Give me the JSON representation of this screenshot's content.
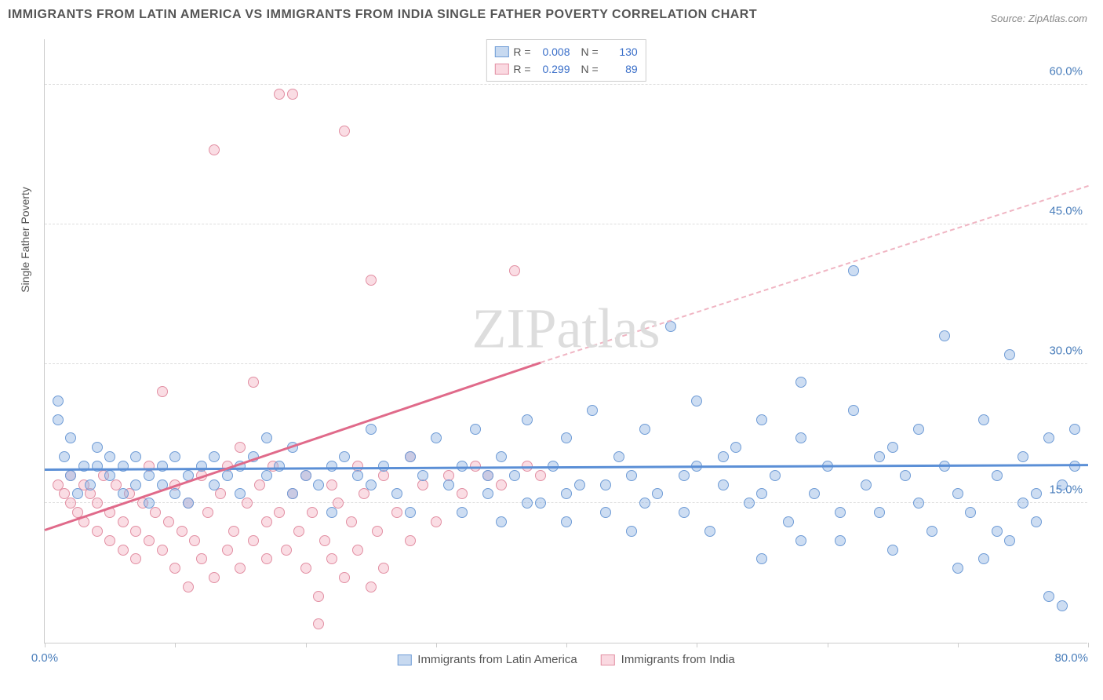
{
  "title": "IMMIGRANTS FROM LATIN AMERICA VS IMMIGRANTS FROM INDIA SINGLE FATHER POVERTY CORRELATION CHART",
  "source": "Source: ZipAtlas.com",
  "watermark": "ZIPatlas",
  "y_axis_title": "Single Father Poverty",
  "chart": {
    "type": "scatter",
    "xlim": [
      0,
      80
    ],
    "ylim": [
      0,
      65
    ],
    "y_ticks": [
      15,
      30,
      45,
      60
    ],
    "y_tick_labels": [
      "15.0%",
      "30.0%",
      "45.0%",
      "60.0%"
    ],
    "x_ticks": [
      0,
      10,
      20,
      30,
      40,
      50,
      60,
      70,
      80
    ],
    "x_label_min": "0.0%",
    "x_label_max": "80.0%",
    "grid_color": "#dddddd",
    "background_color": "#ffffff",
    "marker_radius": 7,
    "series": {
      "latin_america": {
        "color_fill": "rgba(144,180,226,0.45)",
        "color_stroke": "#6f9cd6",
        "trend_color": "#5b8fd6",
        "trend": {
          "x1": 0,
          "y1": 18.5,
          "x2": 80,
          "y2": 19.0
        },
        "R": "0.008",
        "N": "130",
        "label": "Immigrants from Latin America",
        "points": [
          [
            1,
            26
          ],
          [
            1,
            24
          ],
          [
            2,
            22
          ],
          [
            1.5,
            20
          ],
          [
            2,
            18
          ],
          [
            3,
            19
          ],
          [
            2.5,
            16
          ],
          [
            3.5,
            17
          ],
          [
            4,
            19
          ],
          [
            4,
            21
          ],
          [
            5,
            18
          ],
          [
            5,
            20
          ],
          [
            6,
            16
          ],
          [
            6,
            19
          ],
          [
            7,
            17
          ],
          [
            7,
            20
          ],
          [
            8,
            18
          ],
          [
            8,
            15
          ],
          [
            9,
            19
          ],
          [
            9,
            17
          ],
          [
            10,
            16
          ],
          [
            10,
            20
          ],
          [
            11,
            18
          ],
          [
            11,
            15
          ],
          [
            12,
            19
          ],
          [
            13,
            17
          ],
          [
            13,
            20
          ],
          [
            14,
            18
          ],
          [
            15,
            16
          ],
          [
            15,
            19
          ],
          [
            16,
            20
          ],
          [
            17,
            18
          ],
          [
            17,
            22
          ],
          [
            18,
            19
          ],
          [
            19,
            16
          ],
          [
            19,
            21
          ],
          [
            20,
            18
          ],
          [
            21,
            17
          ],
          [
            22,
            19
          ],
          [
            22,
            14
          ],
          [
            23,
            20
          ],
          [
            24,
            18
          ],
          [
            25,
            17
          ],
          [
            25,
            23
          ],
          [
            26,
            19
          ],
          [
            27,
            16
          ],
          [
            28,
            20
          ],
          [
            28,
            14
          ],
          [
            29,
            18
          ],
          [
            30,
            22
          ],
          [
            31,
            17
          ],
          [
            32,
            14
          ],
          [
            32,
            19
          ],
          [
            33,
            23
          ],
          [
            34,
            16
          ],
          [
            35,
            20
          ],
          [
            35,
            13
          ],
          [
            36,
            18
          ],
          [
            37,
            24
          ],
          [
            38,
            15
          ],
          [
            39,
            19
          ],
          [
            40,
            22
          ],
          [
            40,
            13
          ],
          [
            41,
            17
          ],
          [
            42,
            25
          ],
          [
            43,
            14
          ],
          [
            44,
            20
          ],
          [
            45,
            18
          ],
          [
            45,
            12
          ],
          [
            46,
            23
          ],
          [
            47,
            16
          ],
          [
            48,
            34
          ],
          [
            49,
            14
          ],
          [
            50,
            19
          ],
          [
            50,
            26
          ],
          [
            51,
            12
          ],
          [
            52,
            17
          ],
          [
            53,
            21
          ],
          [
            54,
            15
          ],
          [
            55,
            24
          ],
          [
            55,
            9
          ],
          [
            56,
            18
          ],
          [
            57,
            13
          ],
          [
            58,
            22
          ],
          [
            58,
            28
          ],
          [
            59,
            16
          ],
          [
            60,
            19
          ],
          [
            61,
            11
          ],
          [
            62,
            25
          ],
          [
            62,
            40
          ],
          [
            63,
            17
          ],
          [
            64,
            14
          ],
          [
            65,
            21
          ],
          [
            65,
            10
          ],
          [
            66,
            18
          ],
          [
            67,
            23
          ],
          [
            68,
            12
          ],
          [
            69,
            19
          ],
          [
            69,
            33
          ],
          [
            70,
            16
          ],
          [
            71,
            14
          ],
          [
            72,
            24
          ],
          [
            72,
            9
          ],
          [
            73,
            18
          ],
          [
            74,
            11
          ],
          [
            74,
            31
          ],
          [
            75,
            20
          ],
          [
            75,
            15
          ],
          [
            76,
            13
          ],
          [
            77,
            22
          ],
          [
            77,
            5
          ],
          [
            78,
            17
          ],
          [
            78,
            4
          ],
          [
            79,
            19
          ],
          [
            79,
            23
          ],
          [
            76,
            16
          ],
          [
            73,
            12
          ],
          [
            70,
            8
          ],
          [
            67,
            15
          ],
          [
            64,
            20
          ],
          [
            61,
            14
          ],
          [
            58,
            11
          ],
          [
            55,
            16
          ],
          [
            52,
            20
          ],
          [
            49,
            18
          ],
          [
            46,
            15
          ],
          [
            43,
            17
          ],
          [
            40,
            16
          ],
          [
            37,
            15
          ],
          [
            34,
            18
          ]
        ]
      },
      "india": {
        "color_fill": "rgba(245,180,195,0.45)",
        "color_stroke": "#e28fa3",
        "trend_color": "#e06a8a",
        "trend_solid": {
          "x1": 0,
          "y1": 12,
          "x2": 38,
          "y2": 30
        },
        "trend_dashed": {
          "x1": 38,
          "y1": 30,
          "x2": 80,
          "y2": 49
        },
        "R": "0.299",
        "N": "89",
        "label": "Immigrants from India",
        "points": [
          [
            1,
            17
          ],
          [
            1.5,
            16
          ],
          [
            2,
            18
          ],
          [
            2,
            15
          ],
          [
            2.5,
            14
          ],
          [
            3,
            17
          ],
          [
            3,
            13
          ],
          [
            3.5,
            16
          ],
          [
            4,
            12
          ],
          [
            4,
            15
          ],
          [
            4.5,
            18
          ],
          [
            5,
            14
          ],
          [
            5,
            11
          ],
          [
            5.5,
            17
          ],
          [
            6,
            13
          ],
          [
            6,
            10
          ],
          [
            6.5,
            16
          ],
          [
            7,
            12
          ],
          [
            7,
            9
          ],
          [
            7.5,
            15
          ],
          [
            8,
            11
          ],
          [
            8,
            19
          ],
          [
            8.5,
            14
          ],
          [
            9,
            10
          ],
          [
            9,
            27
          ],
          [
            9.5,
            13
          ],
          [
            10,
            8
          ],
          [
            10,
            17
          ],
          [
            10.5,
            12
          ],
          [
            11,
            15
          ],
          [
            11,
            6
          ],
          [
            11.5,
            11
          ],
          [
            12,
            18
          ],
          [
            12,
            9
          ],
          [
            12.5,
            14
          ],
          [
            13,
            7
          ],
          [
            13,
            53
          ],
          [
            13.5,
            16
          ],
          [
            14,
            10
          ],
          [
            14,
            19
          ],
          [
            14.5,
            12
          ],
          [
            15,
            8
          ],
          [
            15,
            21
          ],
          [
            15.5,
            15
          ],
          [
            16,
            11
          ],
          [
            16,
            28
          ],
          [
            16.5,
            17
          ],
          [
            17,
            9
          ],
          [
            17,
            13
          ],
          [
            17.5,
            19
          ],
          [
            18,
            59
          ],
          [
            18,
            14
          ],
          [
            18.5,
            10
          ],
          [
            19,
            16
          ],
          [
            19,
            59
          ],
          [
            19.5,
            12
          ],
          [
            20,
            8
          ],
          [
            20,
            18
          ],
          [
            20.5,
            14
          ],
          [
            21,
            5
          ],
          [
            21,
            2
          ],
          [
            21.5,
            11
          ],
          [
            22,
            17
          ],
          [
            22,
            9
          ],
          [
            22.5,
            15
          ],
          [
            23,
            7
          ],
          [
            23,
            55
          ],
          [
            23.5,
            13
          ],
          [
            24,
            19
          ],
          [
            24,
            10
          ],
          [
            24.5,
            16
          ],
          [
            25,
            6
          ],
          [
            25,
            39
          ],
          [
            25.5,
            12
          ],
          [
            26,
            18
          ],
          [
            26,
            8
          ],
          [
            27,
            14
          ],
          [
            28,
            11
          ],
          [
            28,
            20
          ],
          [
            29,
            17
          ],
          [
            30,
            13
          ],
          [
            31,
            18
          ],
          [
            32,
            16
          ],
          [
            33,
            19
          ],
          [
            34,
            18
          ],
          [
            35,
            17
          ],
          [
            36,
            40
          ],
          [
            37,
            19
          ],
          [
            38,
            18
          ]
        ]
      }
    }
  }
}
